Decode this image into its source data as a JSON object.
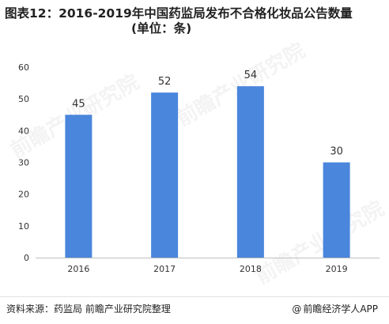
{
  "title": {
    "line1": "图表12：2016-2019年中国药监局发布不合格化妆品公告数量",
    "line2": "(单位：条)"
  },
  "footer": {
    "source": "资料来源：药监局 前瞻产业研究院整理",
    "brand": "前瞻经济学人APP",
    "brand_symbol": "@"
  },
  "watermark": "前瞻产业研究院",
  "colors": {
    "bar": "#4a86dc",
    "axis": "#bfbfbf",
    "text": "#333333"
  },
  "chart_data": {
    "type": "bar",
    "categories": [
      "2016",
      "2017",
      "2018",
      "2019"
    ],
    "values": [
      45,
      52,
      54,
      30
    ],
    "data_labels": [
      "45",
      "52",
      "54",
      "30"
    ],
    "ylim": [
      0,
      60
    ],
    "yticks": [
      0,
      10,
      20,
      30,
      40,
      50,
      60
    ],
    "grid": false,
    "legend": "none",
    "title": "",
    "xlabel": "",
    "ylabel": ""
  }
}
